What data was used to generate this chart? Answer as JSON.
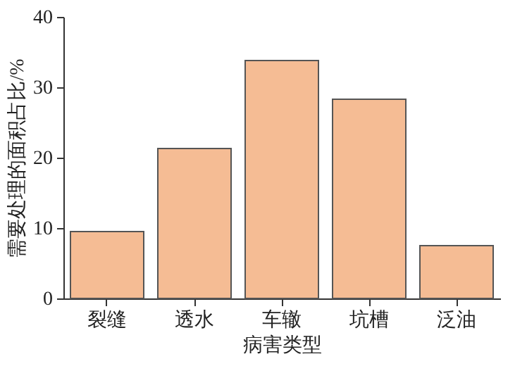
{
  "chart_data": {
    "type": "bar",
    "xlabel": "病害类型",
    "ylabel": "需要处理的面积占比/%",
    "categories": [
      "裂缝",
      "透水",
      "车辙",
      "坑槽",
      "泛油"
    ],
    "values": [
      9.5,
      21.3,
      33.8,
      28.3,
      7.5
    ],
    "color": "#f5bc94",
    "ylim": [
      0,
      40
    ],
    "yticks": [
      0,
      10,
      20,
      30,
      40
    ],
    "grid": false
  }
}
